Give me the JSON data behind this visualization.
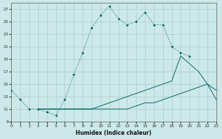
{
  "xlabel": "Humidex (Indice chaleur)",
  "bg_color": "#cce8e8",
  "grid_color": "#aacccc",
  "line_color": "#006666",
  "x_min": 0,
  "x_max": 23,
  "y_min": 9,
  "y_max": 28,
  "yticks": [
    9,
    11,
    13,
    15,
    17,
    19,
    21,
    23,
    25,
    27
  ],
  "xticks": [
    0,
    1,
    2,
    3,
    4,
    5,
    6,
    7,
    8,
    9,
    10,
    11,
    12,
    13,
    14,
    15,
    16,
    17,
    18,
    19,
    20,
    21,
    22,
    23
  ],
  "line1_x": [
    0,
    1,
    2,
    3,
    4,
    5,
    6,
    7,
    8,
    9,
    10,
    11,
    12,
    13,
    14,
    15,
    16,
    17,
    18,
    19,
    20
  ],
  "line1_y": [
    14,
    12.5,
    11,
    11,
    10.5,
    10,
    12.5,
    16.5,
    20,
    24,
    26,
    27.5,
    25.5,
    24.5,
    25,
    26.5,
    24.5,
    24.5,
    21,
    20,
    19.5
  ],
  "line2_x": [
    3,
    4,
    5,
    6,
    7,
    8,
    9,
    10,
    11,
    12,
    13,
    14,
    15,
    16,
    17,
    18,
    19,
    21,
    22,
    23
  ],
  "line2_y": [
    11,
    11,
    11,
    11,
    11,
    11,
    11,
    11.5,
    12,
    12.5,
    13,
    13.5,
    14,
    14.5,
    15,
    15.5,
    19.5,
    17,
    15,
    14
  ],
  "line3_x": [
    3,
    4,
    5,
    6,
    7,
    8,
    9,
    10,
    11,
    12,
    13,
    14,
    15,
    16,
    17,
    18,
    19,
    20,
    21,
    22,
    23
  ],
  "line3_y": [
    11,
    11,
    11,
    11,
    11,
    11,
    11,
    11,
    11,
    11,
    11,
    11.5,
    12,
    12,
    12.5,
    13,
    13.5,
    14,
    14.5,
    15,
    12.5
  ]
}
